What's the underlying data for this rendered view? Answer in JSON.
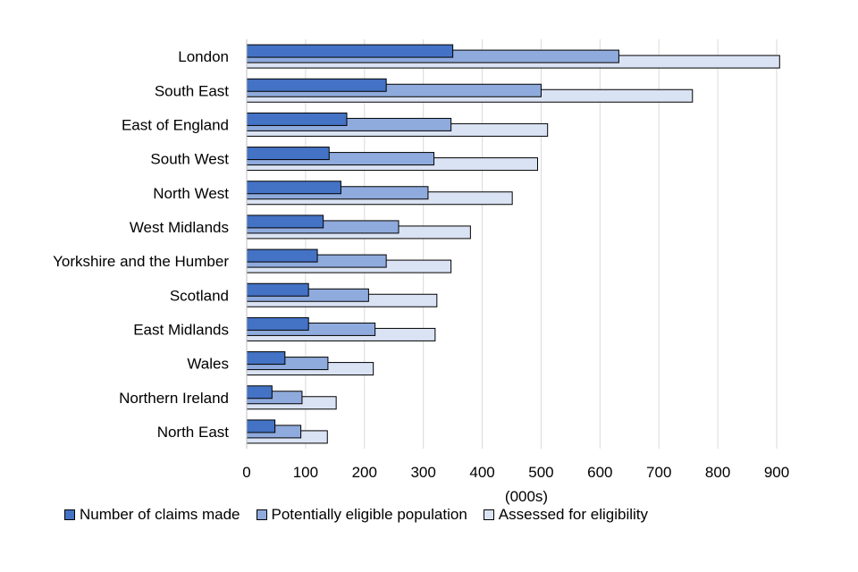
{
  "chart_data": {
    "type": "bar",
    "orientation": "horizontal",
    "categories": [
      "London",
      "South East",
      "East of England",
      "South West",
      "North West",
      "West Midlands",
      "Yorkshire and the Humber",
      "Scotland",
      "East Midlands",
      "Wales",
      "Northern Ireland",
      "North East"
    ],
    "series": [
      {
        "name": "Number of claims made",
        "color": "#4472c4",
        "values": [
          350,
          237,
          170,
          140,
          160,
          130,
          120,
          105,
          105,
          65,
          43,
          48
        ]
      },
      {
        "name": "Potentially eligible population",
        "color": "#8faadc",
        "values": [
          632,
          500,
          347,
          318,
          308,
          258,
          237,
          207,
          218,
          138,
          94,
          92
        ]
      },
      {
        "name": "Assessed for eligibility",
        "color": "#dae3f3",
        "values": [
          905,
          757,
          511,
          494,
          451,
          380,
          347,
          323,
          320,
          215,
          152,
          137
        ]
      }
    ],
    "xlabel": "(000s)",
    "xlim": [
      0,
      900
    ],
    "xticks": [
      0,
      100,
      200,
      300,
      400,
      500,
      600,
      700,
      800,
      900
    ],
    "grid": "vertical",
    "legend_position": "bottom"
  }
}
